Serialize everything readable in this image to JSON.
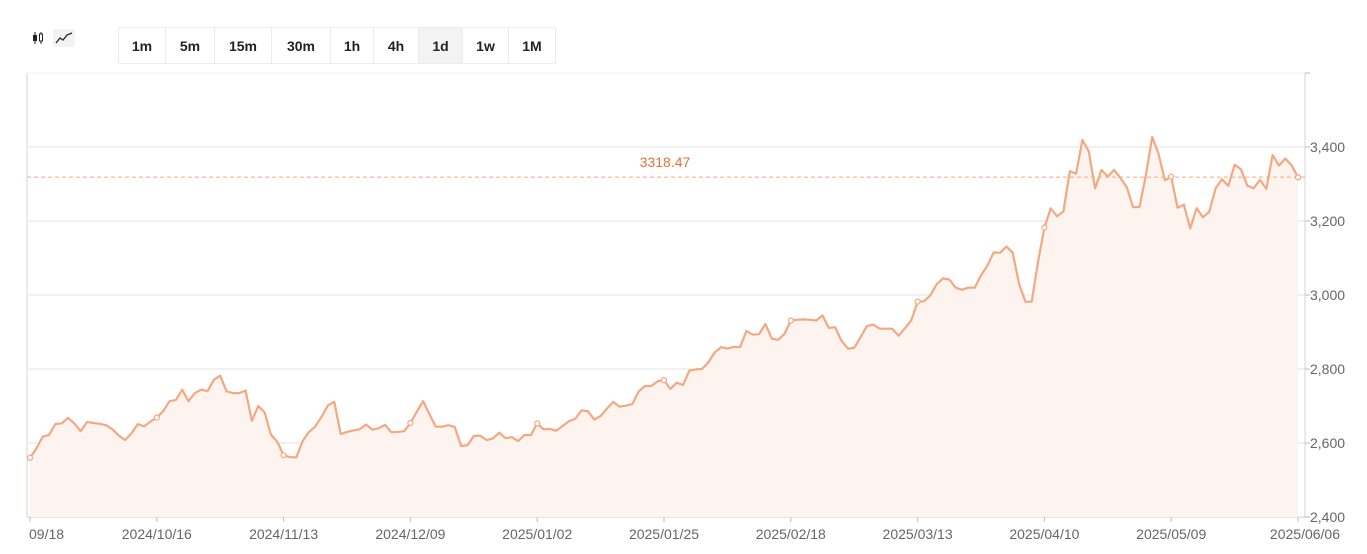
{
  "toolbar": {
    "chart_type_icons": [
      {
        "icon": "candlestick-icon",
        "active": false
      },
      {
        "icon": "line-chart-icon",
        "active": true
      }
    ],
    "timeframes": [
      {
        "label": "1m",
        "active": false
      },
      {
        "label": "5m",
        "active": false
      },
      {
        "label": "15m",
        "active": false
      },
      {
        "label": "30m",
        "active": false
      },
      {
        "label": "1h",
        "active": false
      },
      {
        "label": "4h",
        "active": false
      },
      {
        "label": "1d",
        "active": true
      },
      {
        "label": "1w",
        "active": false
      },
      {
        "label": "1M",
        "active": false
      }
    ]
  },
  "colors": {
    "line": "#f4a882",
    "area": "#fdf4ef",
    "price_label": "#e8703a",
    "grid": "#e3e3e3"
  },
  "chart_data": {
    "type": "area",
    "current_price": 3318.47,
    "current_price_label": "3318.47",
    "ylim": [
      2400,
      3600
    ],
    "y_ticks": [
      2400,
      2600,
      2800,
      3000,
      3200,
      3400
    ],
    "y_tick_labels": [
      "2,400",
      "2,600",
      "2,800",
      "3,000",
      "3,200",
      "3,400"
    ],
    "x_tick_labels": [
      "09/18",
      "2024/10/16",
      "2024/11/13",
      "2024/12/09",
      "2025/01/02",
      "2025/01/25",
      "2025/02/18",
      "2025/03/13",
      "2025/04/10",
      "2025/05/09",
      "2025/06/06"
    ],
    "series": [
      {
        "values": [
          2560,
          2585,
          2617,
          2622,
          2651,
          2653,
          2668,
          2653,
          2632,
          2657,
          2654,
          2652,
          2648,
          2637,
          2620,
          2608,
          2626,
          2651,
          2645,
          2658,
          2669,
          2686,
          2713,
          2716,
          2744,
          2713,
          2735,
          2744,
          2740,
          2771,
          2782,
          2740,
          2735,
          2735,
          2742,
          2660,
          2700,
          2683,
          2623,
          2603,
          2567,
          2562,
          2561,
          2605,
          2630,
          2645,
          2671,
          2702,
          2711,
          2624,
          2630,
          2634,
          2637,
          2650,
          2636,
          2640,
          2649,
          2629,
          2630,
          2632,
          2654,
          2684,
          2713,
          2678,
          2644,
          2644,
          2648,
          2643,
          2592,
          2594,
          2619,
          2620,
          2608,
          2612,
          2628,
          2613,
          2616,
          2605,
          2622,
          2621,
          2653,
          2637,
          2638,
          2633,
          2646,
          2659,
          2665,
          2688,
          2686,
          2663,
          2673,
          2693,
          2711,
          2698,
          2701,
          2705,
          2739,
          2754,
          2754,
          2767,
          2770,
          2746,
          2763,
          2757,
          2796,
          2799,
          2800,
          2818,
          2845,
          2859,
          2855,
          2860,
          2859,
          2903,
          2893,
          2894,
          2922,
          2882,
          2879,
          2895,
          2931,
          2933,
          2934,
          2933,
          2931,
          2945,
          2911,
          2913,
          2876,
          2855,
          2857,
          2886,
          2916,
          2920,
          2909,
          2909,
          2909,
          2890,
          2910,
          2932,
          2982,
          2983,
          2999,
          3029,
          3045,
          3042,
          3020,
          3014,
          3020,
          3020,
          3053,
          3079,
          3115,
          3114,
          3131,
          3114,
          3031,
          2982,
          2982,
          3091,
          3182,
          3234,
          3213,
          3226,
          3335,
          3328,
          3419,
          3388,
          3288,
          3338,
          3320,
          3338,
          3316,
          3291,
          3237,
          3238,
          3323,
          3427,
          3382,
          3310,
          3320,
          3236,
          3244,
          3180,
          3235,
          3210,
          3225,
          3288,
          3313,
          3295,
          3352,
          3340,
          3296,
          3288,
          3311,
          3287,
          3378,
          3350,
          3369,
          3350,
          3318
        ]
      }
    ]
  }
}
